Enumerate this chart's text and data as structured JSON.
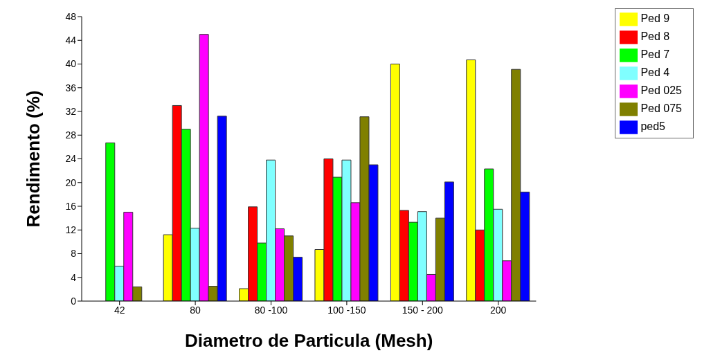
{
  "chart_data": {
    "type": "bar",
    "xlabel": "Diametro de Particula (Mesh)",
    "ylabel": "Rendimento (%)",
    "categories": [
      "42",
      "80",
      "80 -100",
      "100 -150",
      "150 - 200",
      "200"
    ],
    "series": [
      {
        "name": "Ped 9",
        "color": "#ffff00",
        "values": [
          null,
          11.2,
          2.1,
          8.7,
          40,
          40.7
        ]
      },
      {
        "name": "Ped 8",
        "color": "#ff0000",
        "values": [
          null,
          33,
          15.9,
          24,
          15.3,
          12
        ]
      },
      {
        "name": "Ped 7",
        "color": "#00ff00",
        "values": [
          26.7,
          29,
          9.8,
          20.9,
          13.3,
          22.3
        ]
      },
      {
        "name": "Ped 4",
        "color": "#80ffff",
        "values": [
          5.9,
          12.3,
          23.8,
          23.8,
          15.1,
          15.5
        ]
      },
      {
        "name": "Ped 025",
        "color": "#ff00ff",
        "values": [
          15,
          45,
          12.2,
          16.6,
          4.5,
          6.8
        ]
      },
      {
        "name": "Ped 075",
        "color": "#808000",
        "values": [
          2.4,
          2.5,
          11,
          31.1,
          14,
          39.1
        ]
      },
      {
        "name": "ped5",
        "color": "#0000ff",
        "values": [
          null,
          31.2,
          7.4,
          23,
          20.1,
          18.4
        ]
      }
    ],
    "ylim": [
      0,
      48
    ],
    "yticks": [
      0,
      4,
      8,
      12,
      16,
      20,
      24,
      28,
      32,
      36,
      40,
      44,
      48
    ],
    "grid": false,
    "legend": "top right"
  }
}
